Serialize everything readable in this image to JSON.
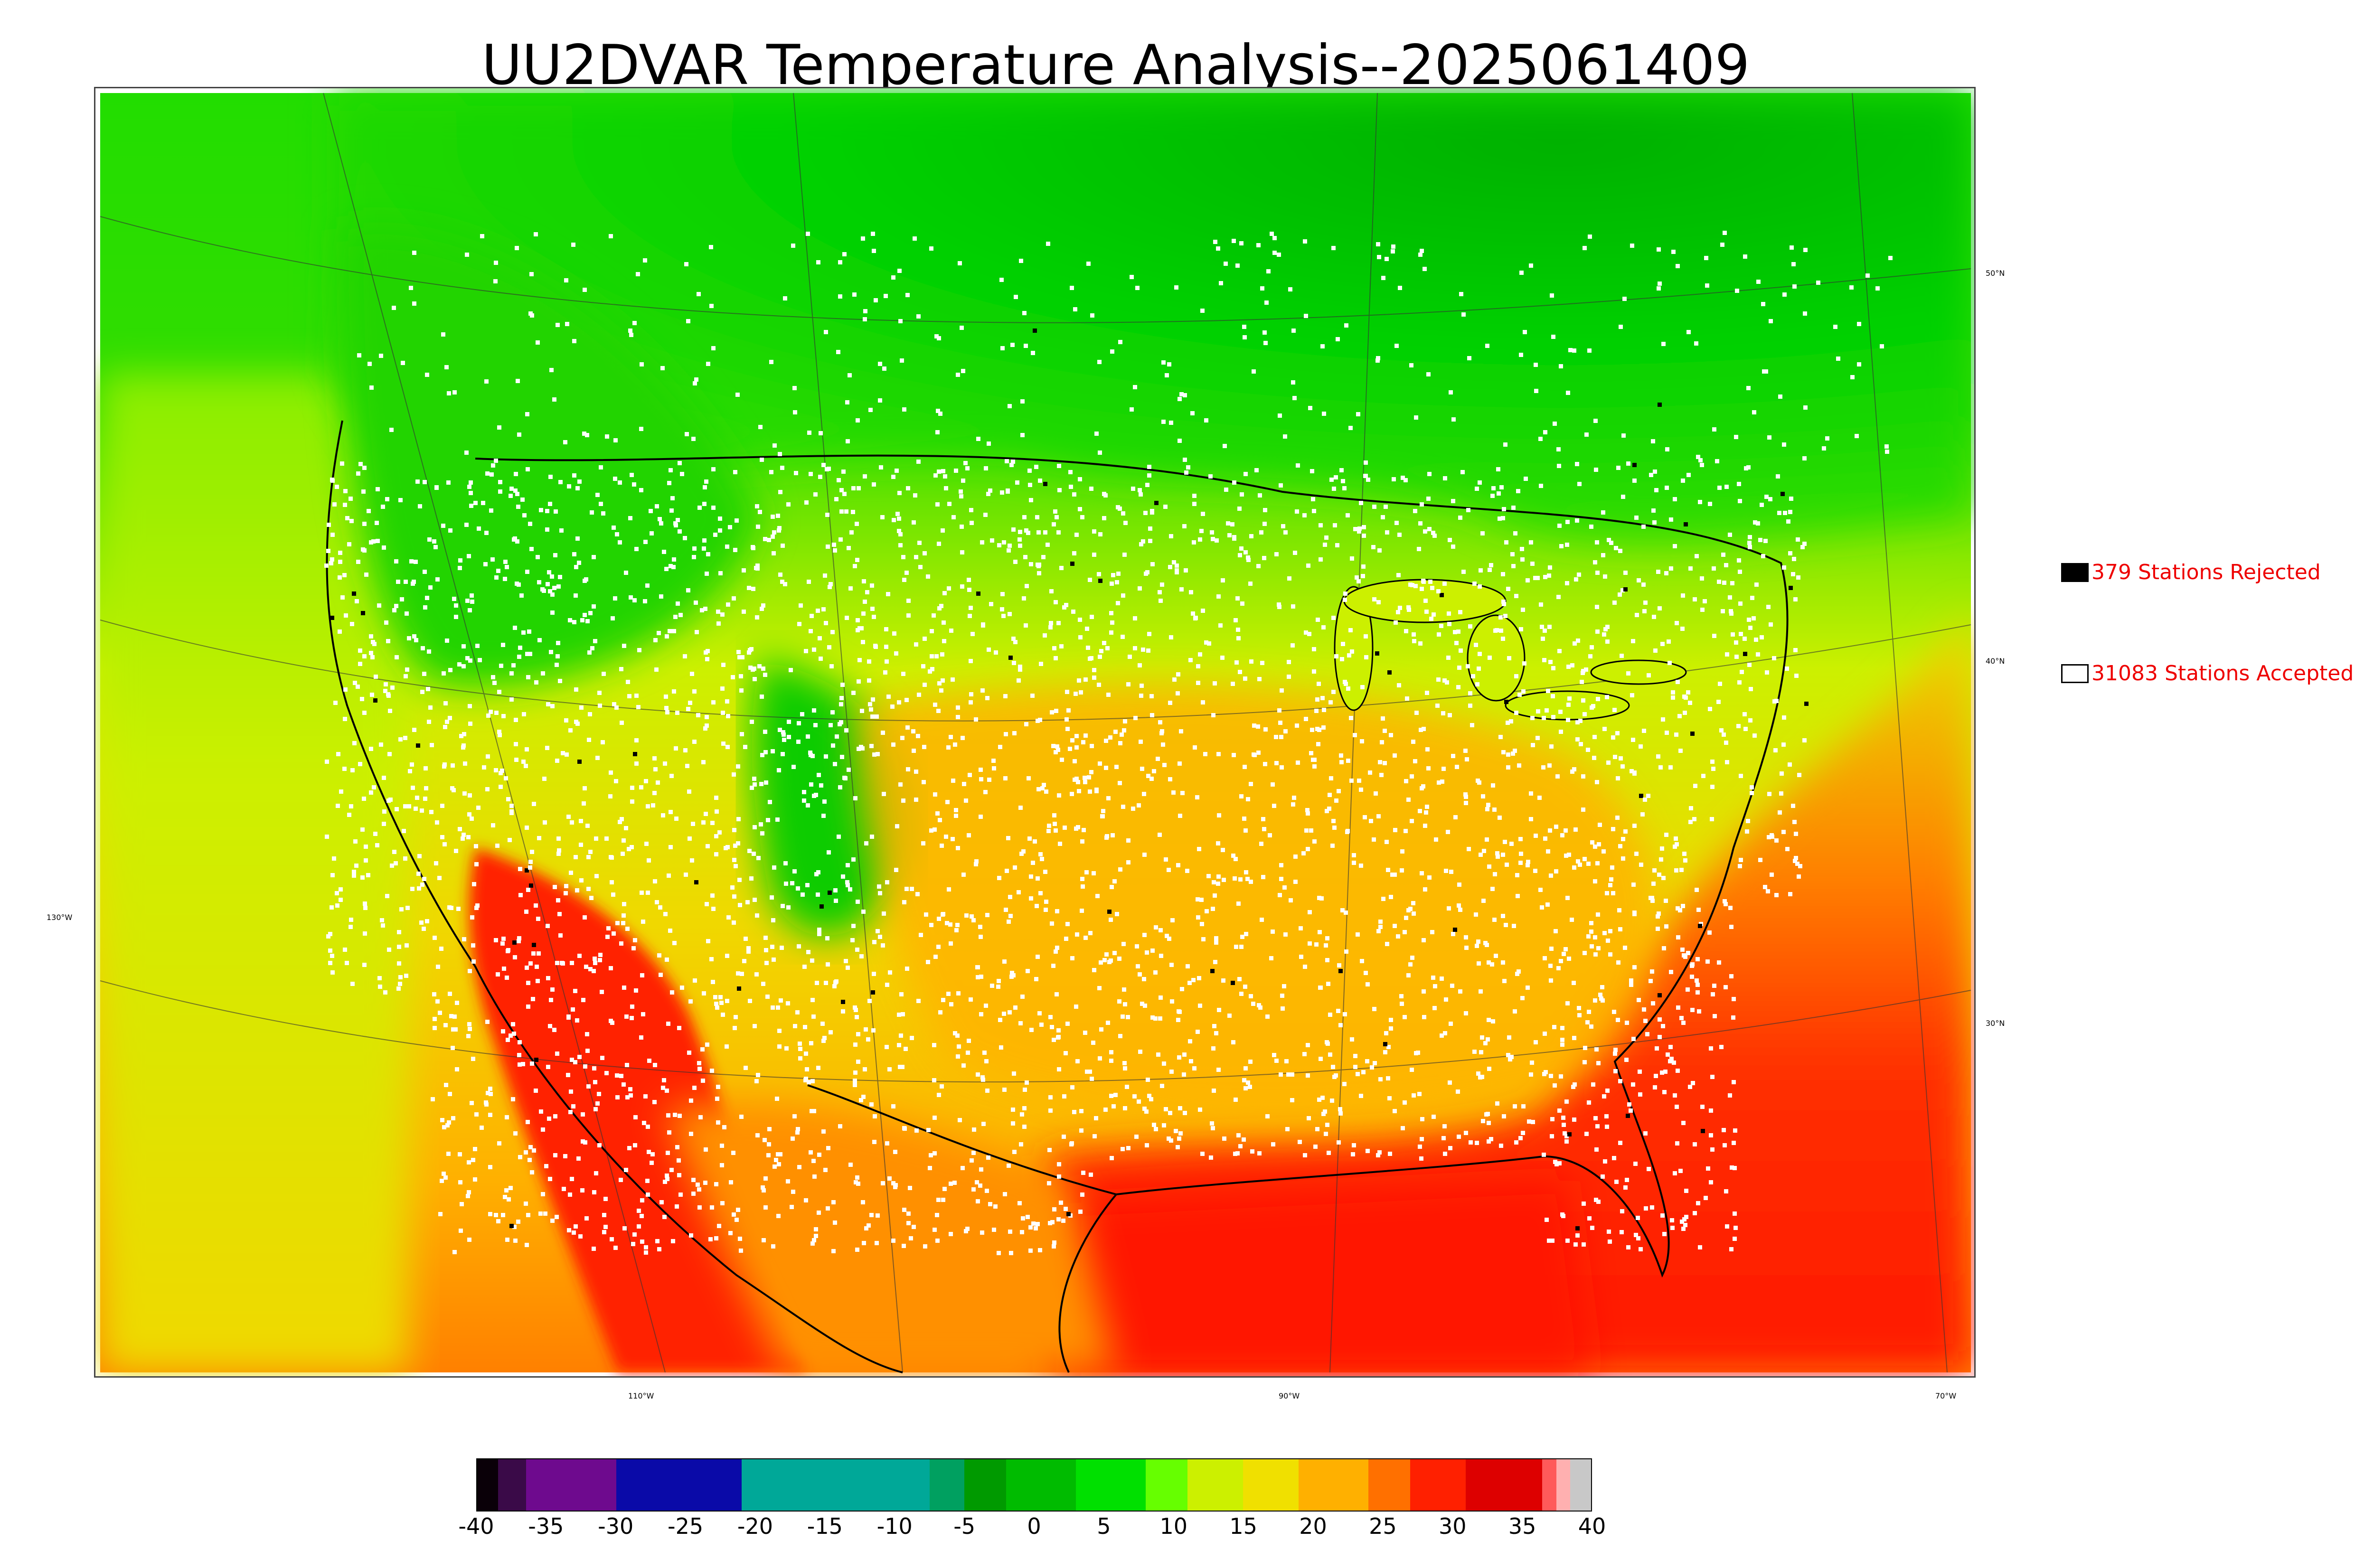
{
  "title": "UU2DVAR Temperature Analysis--2025061409",
  "legend": {
    "rejected": {
      "label": "379 Stations Rejected",
      "box_color": "#000000"
    },
    "accepted": {
      "label": "31083 Stations Accepted",
      "box_color": "#ffffff"
    },
    "text_color": "#ee0000"
  },
  "graticule": {
    "lat_labels": [
      "50°N",
      "40°N",
      "30°N"
    ],
    "lon_labels": [
      "130°W",
      "110°W",
      "90°W",
      "70°W"
    ]
  },
  "colorbar": {
    "min": -40,
    "max": 40,
    "tick_labels": [
      "-40",
      "-35",
      "-30",
      "-25",
      "-20",
      "-15",
      "-10",
      "-5",
      "0",
      "5",
      "10",
      "15",
      "20",
      "25",
      "30",
      "35",
      "40"
    ],
    "segments": [
      {
        "from": -40,
        "to": -38.5,
        "color": "#0a0008"
      },
      {
        "from": -38.5,
        "to": -36.5,
        "color": "#3a0a48"
      },
      {
        "from": -36.5,
        "to": -30,
        "color": "#6e0a8e"
      },
      {
        "from": -30,
        "to": -21,
        "color": "#0a0aa8"
      },
      {
        "from": -21,
        "to": -7.5,
        "color": "#00a898"
      },
      {
        "from": -7.5,
        "to": -5,
        "color": "#00a060"
      },
      {
        "from": -5,
        "to": -2,
        "color": "#009a00"
      },
      {
        "from": -2,
        "to": 3,
        "color": "#00bb00"
      },
      {
        "from": 3,
        "to": 8,
        "color": "#00e000"
      },
      {
        "from": 8,
        "to": 11,
        "color": "#66ff00"
      },
      {
        "from": 11,
        "to": 15,
        "color": "#ccf000"
      },
      {
        "from": 15,
        "to": 19,
        "color": "#f0e000"
      },
      {
        "from": 19,
        "to": 24,
        "color": "#ffb000"
      },
      {
        "from": 24,
        "to": 27,
        "color": "#ff7000"
      },
      {
        "from": 27,
        "to": 31,
        "color": "#ff2000"
      },
      {
        "from": 31,
        "to": 36.5,
        "color": "#dd0000"
      },
      {
        "from": 36.5,
        "to": 37.5,
        "color": "#ff5a5a"
      },
      {
        "from": 37.5,
        "to": 38.5,
        "color": "#ffb0b0"
      },
      {
        "from": 38.5,
        "to": 40,
        "color": "#c8c8c8"
      }
    ]
  },
  "map_colors": {
    "ocean_pacific": "#e8f000",
    "ocean_atlantic_south": "#ff2a00",
    "canada_north": "#00d000",
    "canada_dark": "#00b000",
    "plains_warm": "#ffb000",
    "southwest_hot": "#ff2000",
    "mountains_cool": "#33dd00",
    "rockies_green": "#00cc00",
    "midwest_yellow": "#e8e800",
    "mexico_orange": "#ff9a00",
    "stations_accepted": "#ffffff",
    "stations_rejected": "#000000"
  }
}
